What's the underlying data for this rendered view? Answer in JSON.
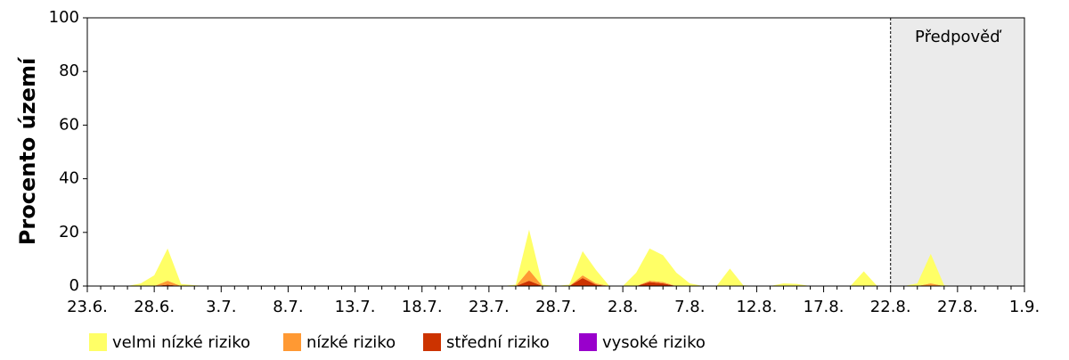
{
  "chart_data": {
    "type": "stacked-area",
    "ylabel": "Procento území",
    "categories": [
      "23.6.",
      null,
      null,
      null,
      null,
      "28.6.",
      null,
      null,
      null,
      null,
      "3.7.",
      null,
      null,
      null,
      null,
      "8.7.",
      null,
      null,
      null,
      null,
      "13.7.",
      null,
      null,
      null,
      null,
      "18.7.",
      null,
      null,
      null,
      null,
      "23.7.",
      null,
      null,
      null,
      null,
      "28.7.",
      null,
      null,
      null,
      null,
      "2.8.",
      null,
      null,
      null,
      null,
      "7.8.",
      null,
      null,
      null,
      null,
      "12.8.",
      null,
      null,
      null,
      null,
      "17.8.",
      null,
      null,
      null,
      null,
      "22.8.",
      null,
      null,
      null,
      null,
      "27.8.",
      null,
      null,
      null,
      null,
      "1.9."
    ],
    "series": [
      {
        "name": "velmi nízké riziko",
        "color": "#ffff66",
        "values": [
          0,
          0,
          0,
          0,
          1,
          4,
          12,
          0.8,
          0.3,
          0,
          0,
          0,
          0,
          0,
          0,
          0,
          0,
          0,
          0,
          0,
          0,
          0,
          0,
          0,
          0,
          0,
          0,
          0,
          0,
          0,
          0,
          0,
          0.5,
          15,
          0.5,
          0,
          0.5,
          9,
          5,
          0,
          0,
          5,
          12,
          10,
          5,
          1,
          0,
          0,
          6.5,
          0.3,
          0,
          0,
          1,
          0.8,
          0,
          0,
          0,
          0,
          5.5,
          0,
          0,
          0,
          1,
          11,
          0.3,
          0,
          0,
          0,
          0,
          0,
          0
        ]
      },
      {
        "name": "nízké riziko",
        "color": "#ff9933",
        "values": [
          0,
          0,
          0,
          0,
          0,
          0,
          1.5,
          0,
          0,
          0,
          0,
          0,
          0,
          0,
          0,
          0,
          0,
          0,
          0,
          0,
          0,
          0,
          0,
          0,
          0,
          0,
          0,
          0,
          0,
          0,
          0,
          0,
          0,
          4,
          0,
          0,
          0,
          1,
          0.5,
          0,
          0,
          0,
          0.5,
          0.5,
          0,
          0,
          0,
          0,
          0,
          0,
          0,
          0,
          0,
          0,
          0,
          0,
          0,
          0,
          0,
          0,
          0,
          0,
          0,
          1,
          0,
          0,
          0,
          0,
          0,
          0,
          0
        ]
      },
      {
        "name": "střední riziko",
        "color": "#cc3300",
        "values": [
          0,
          0,
          0,
          0,
          0,
          0,
          0.5,
          0,
          0,
          0,
          0,
          0,
          0,
          0,
          0,
          0,
          0,
          0,
          0,
          0,
          0,
          0,
          0,
          0,
          0,
          0,
          0,
          0,
          0,
          0,
          0,
          0,
          0,
          2,
          0,
          0,
          0,
          3,
          0.5,
          0,
          0,
          0,
          1.5,
          1,
          0,
          0,
          0,
          0,
          0,
          0,
          0,
          0,
          0,
          0,
          0,
          0,
          0,
          0,
          0,
          0,
          0,
          0,
          0,
          0,
          0,
          0,
          0,
          0,
          0,
          0,
          0
        ]
      },
      {
        "name": "vysoké riziko",
        "color": "#9900cc",
        "values": [
          0,
          0,
          0,
          0,
          0,
          0,
          0,
          0,
          0,
          0,
          0,
          0,
          0,
          0,
          0,
          0,
          0,
          0,
          0,
          0,
          0,
          0,
          0,
          0,
          0,
          0,
          0,
          0,
          0,
          0,
          0,
          0,
          0,
          0,
          0,
          0,
          0,
          0,
          0,
          0,
          0,
          0,
          0,
          0,
          0,
          0,
          0,
          0,
          0,
          0,
          0,
          0,
          0,
          0,
          0,
          0,
          0,
          0,
          0,
          0,
          0,
          0,
          0,
          0,
          0,
          0,
          0,
          0,
          0,
          0,
          0
        ]
      }
    ],
    "ylim": [
      0,
      100
    ],
    "yticks": [
      0,
      20,
      40,
      60,
      80,
      100
    ],
    "forecast": {
      "label": "Předpověď",
      "from": "22.8.",
      "color": "#ebebeb"
    }
  }
}
